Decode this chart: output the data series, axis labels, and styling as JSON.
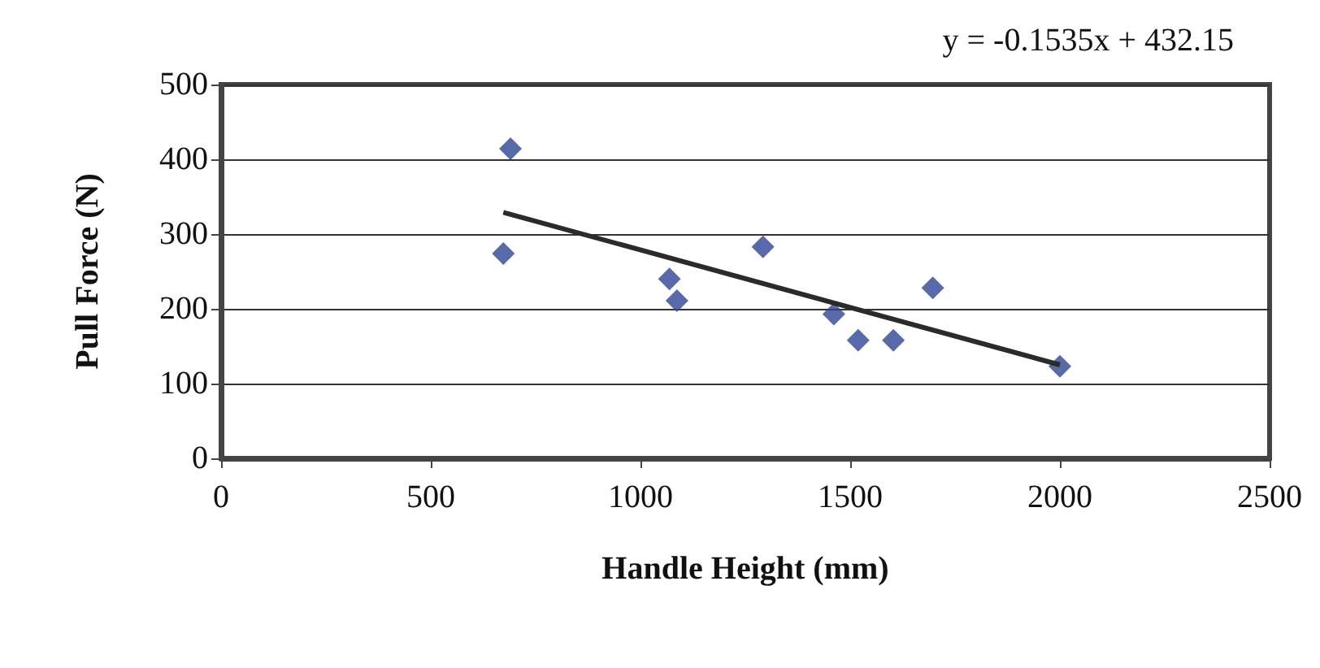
{
  "chart_data": {
    "type": "scatter",
    "xlabel": "Handle Height (mm)",
    "ylabel": "Pull Force (N)",
    "annotations": [
      "y = -0.1535x + 432.15"
    ],
    "xlim": [
      0,
      2500
    ],
    "xticks": [
      0,
      500,
      1000,
      1500,
      2000,
      2500
    ],
    "ylim": [
      0,
      500
    ],
    "yticks": [
      0,
      100,
      200,
      300,
      400,
      500
    ],
    "grid": "y",
    "marker": "diamond",
    "series": [
      {
        "color": "#2e4593",
        "x": [
          690,
          673,
          1069,
          1087,
          1292,
          1461,
          1519,
          1603,
          1697,
          2000
        ],
        "values": [
          414,
          274,
          240,
          211,
          283,
          193,
          158,
          158,
          228,
          123
        ]
      },
      {
        "type": "line",
        "color": "#2b2b2b",
        "line_style": "solid",
        "marker": "none",
        "x": [
          673,
          2000
        ],
        "values": [
          329,
          125
        ]
      }
    ]
  }
}
